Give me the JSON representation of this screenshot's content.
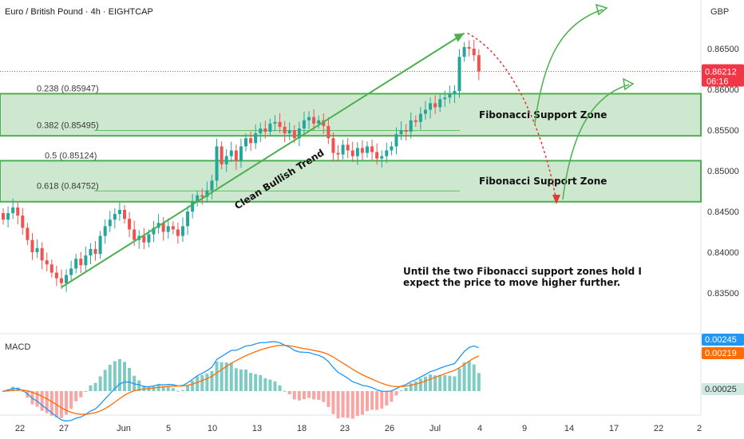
{
  "header": {
    "title": "Euro / British Pound · 4h · EIGHTCAP",
    "currency": "GBP"
  },
  "price_tag": {
    "value": "0.86212",
    "countdown": "06:16",
    "color": "#f23645"
  },
  "macd": {
    "label": "MACD",
    "tags": [
      {
        "value": "0.00245",
        "color": "#2196f3"
      },
      {
        "value": "0.00219",
        "color": "#ff6d00"
      },
      {
        "value": "0.00025",
        "color": "#cfe8e2"
      }
    ]
  },
  "colors": {
    "up": "#26a69a",
    "down": "#ef5350",
    "accent": "#4caf50",
    "zone_fill": "#a5d6a7",
    "dashed": "#e53935"
  },
  "chart_data": {
    "type": "candlestick",
    "ylim": [
      0.83,
      0.87
    ],
    "y_ticks": [
      "0.86500",
      "0.86000",
      "0.85500",
      "0.85000",
      "0.84500",
      "0.84000",
      "0.83500"
    ],
    "x_ticks": [
      "22",
      "27",
      "Jun",
      "5",
      "10",
      "13",
      "18",
      "23",
      "26",
      "Jul",
      "4",
      "9",
      "14",
      "17",
      "22",
      "2"
    ],
    "fib_levels": [
      {
        "label": "0.238 (0.85947)",
        "value": 0.85947
      },
      {
        "label": "0.382 (0.85495)",
        "value": 0.85495
      },
      {
        "label": "0.5 (0.85124)",
        "value": 0.85124
      },
      {
        "label": "0.618 (0.84752)",
        "value": 0.84752
      }
    ],
    "zones": [
      {
        "label": "Fibonacci Support Zone",
        "top": 0.85947,
        "bottom": 0.8543
      },
      {
        "label": "Fibonacci Support Zone",
        "top": 0.85124,
        "bottom": 0.8462
      }
    ],
    "trend_label": "Clean Bullish Trend",
    "trend_start": {
      "bar": 12,
      "price": 0.8357
    },
    "trend_end": {
      "bar": 95,
      "price": 0.8669
    },
    "annotation": [
      "Until the two Fibonacci support zones hold I",
      "expect the price to move higher further."
    ],
    "close": [
      0.844,
      0.8448,
      0.8455,
      0.8445,
      0.843,
      0.8415,
      0.84,
      0.8405,
      0.839,
      0.8385,
      0.8375,
      0.8368,
      0.8362,
      0.8372,
      0.838,
      0.8392,
      0.8384,
      0.8396,
      0.8404,
      0.8398,
      0.842,
      0.8432,
      0.844,
      0.8447,
      0.8452,
      0.8441,
      0.8428,
      0.8415,
      0.842,
      0.8412,
      0.8422,
      0.843,
      0.8436,
      0.8425,
      0.8432,
      0.8428,
      0.842,
      0.8432,
      0.845,
      0.8462,
      0.847,
      0.8468,
      0.8476,
      0.8488,
      0.853,
      0.8508,
      0.8518,
      0.8525,
      0.8512,
      0.853,
      0.854,
      0.8534,
      0.8546,
      0.8552,
      0.8548,
      0.8558,
      0.856,
      0.8554,
      0.8546,
      0.855,
      0.854,
      0.8552,
      0.8562,
      0.8566,
      0.8558,
      0.8562,
      0.8555,
      0.854,
      0.8522,
      0.852,
      0.8532,
      0.8525,
      0.8518,
      0.8528,
      0.8522,
      0.853,
      0.8523,
      0.8515,
      0.8518,
      0.8525,
      0.853,
      0.8545,
      0.855,
      0.8548,
      0.8562,
      0.856,
      0.857,
      0.8575,
      0.8583,
      0.8578,
      0.8588,
      0.859,
      0.8594,
      0.8598,
      0.864,
      0.8652,
      0.865,
      0.8642,
      0.8622
    ]
  }
}
